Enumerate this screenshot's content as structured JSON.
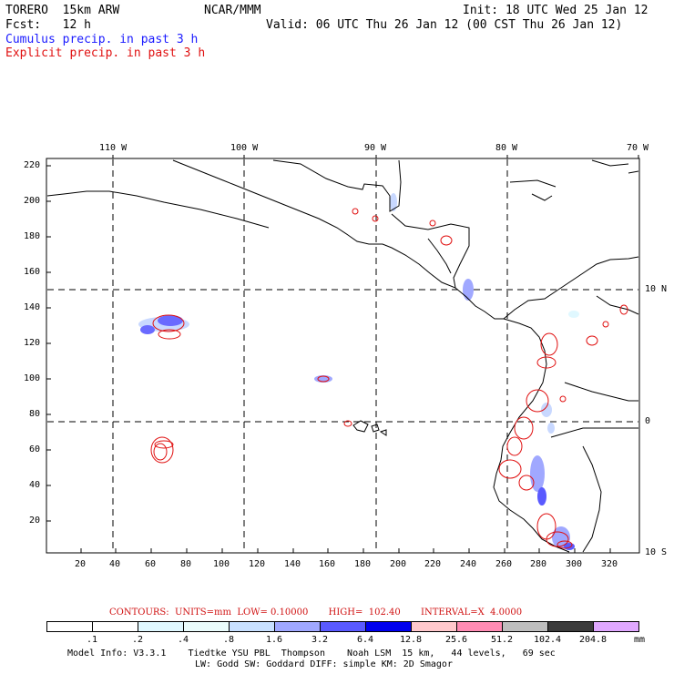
{
  "header": {
    "model_name": "TORERO  15km ARW",
    "org": "NCAR/MMM",
    "init": "Init: 18 UTC Wed 25 Jan 12",
    "fcst": "Fcst:   12 h",
    "valid": "Valid: 06 UTC Thu 26 Jan 12 (00 CST Thu 26 Jan 12)",
    "cumulus": "Cumulus precip. in past 3 h",
    "explicit": "Explicit precip. in past 3 h"
  },
  "map": {
    "lon_labels": [
      "110 W",
      "100 W",
      "90 W",
      "80 W",
      "70 W"
    ],
    "lat_labels": [
      "10 N",
      "0",
      "10 S"
    ],
    "y_ticks": [
      "220",
      "200",
      "180",
      "160",
      "140",
      "120",
      "100",
      "80",
      "60",
      "40",
      "20"
    ],
    "x_ticks": [
      "20",
      "40",
      "60",
      "80",
      "100",
      "120",
      "140",
      "160",
      "180",
      "200",
      "220",
      "240",
      "260",
      "280",
      "300",
      "320"
    ],
    "colors": {
      "coast": "#000000",
      "grid": "#000000",
      "explicit_contour": "#e01010",
      "cumulus_light": "#c8d8ff",
      "cumulus_mid": "#6a6aff"
    }
  },
  "contours_info": {
    "text": "CONTOURS:  UNITS=mm  LOW= 0.10000       HIGH=  102.40       INTERVAL=X  4.0000"
  },
  "legend": {
    "labels": [
      ".1",
      ".2",
      ".4",
      ".8",
      "1.6",
      "3.2",
      "6.4",
      "12.8",
      "25.6",
      "51.2",
      "102.4",
      "204.8"
    ],
    "unit": "mm",
    "colors": [
      "#ffffff",
      "#ffffff",
      "#e0f8ff",
      "#eafcfc",
      "#c8e0ff",
      "#a0a8ff",
      "#5a5aff",
      "#0000ee",
      "#ffc8cc",
      "#ff8cb4",
      "#bebebe",
      "#3c3c3c",
      "#e0a8ff"
    ]
  },
  "model_info": {
    "line1": "Model Info: V3.3.1    Tiedtke YSU PBL  Thompson    Noah LSM  15 km,   44 levels,   69 sec",
    "line2": "LW: Godd SW: Goddard DIFF: simple KM: 2D Smagor"
  }
}
